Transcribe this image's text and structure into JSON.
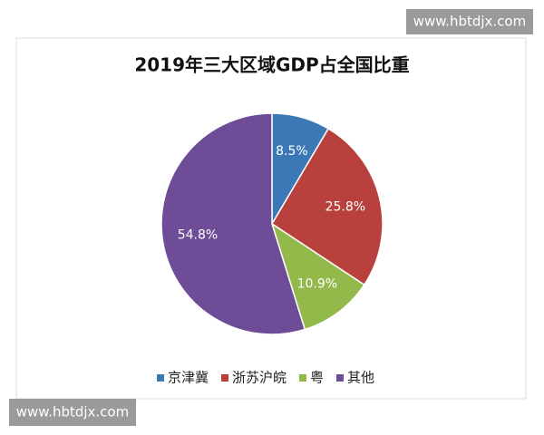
{
  "watermarks": [
    "www.hbtdjx.com",
    "www.hbtdjx.com"
  ],
  "chart_data": {
    "type": "pie",
    "title": "2019年三大区域GDP占全国比重",
    "categories": [
      "京津冀",
      "浙苏沪皖",
      "粤",
      "其他"
    ],
    "values": [
      8.5,
      25.8,
      10.9,
      54.8
    ],
    "value_labels": [
      "8.5%",
      "25.8%",
      "10.9%",
      "54.8%"
    ],
    "colors": [
      "#3c78b6",
      "#b8413e",
      "#92b94a",
      "#6e4c98"
    ],
    "legend": "bottom"
  }
}
